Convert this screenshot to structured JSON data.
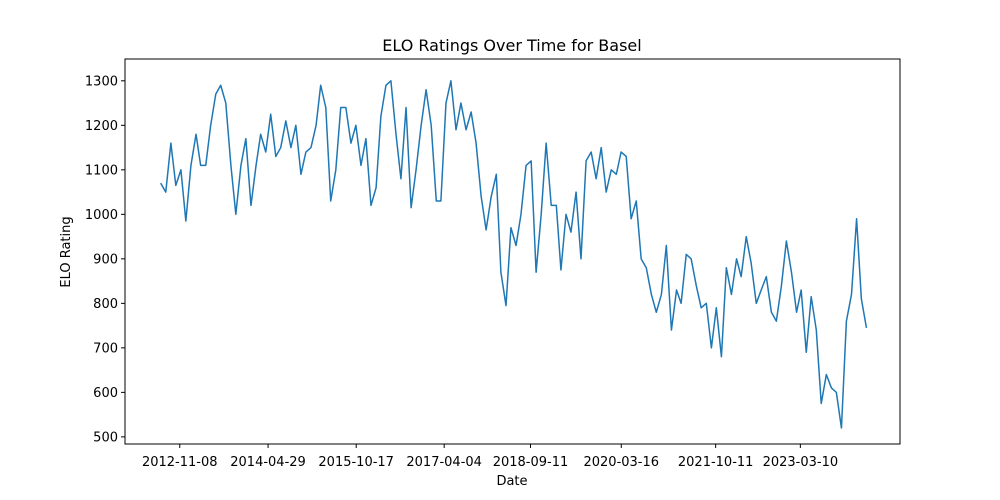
{
  "chart_data": {
    "type": "line",
    "title": "ELO Ratings Over Time for Basel",
    "x_label": "Date",
    "y_label": "ELO Rating",
    "x": [
      "2012-07-15",
      "2012-08-15",
      "2012-09-15",
      "2012-10-15",
      "2012-11-15",
      "2012-12-15",
      "2013-01-15",
      "2013-02-15",
      "2013-03-15",
      "2013-04-15",
      "2013-05-15",
      "2013-06-15",
      "2013-07-15",
      "2013-08-15",
      "2013-09-15",
      "2013-10-15",
      "2013-11-15",
      "2013-12-15",
      "2014-01-15",
      "2014-02-15",
      "2014-03-15",
      "2014-04-15",
      "2014-05-15",
      "2014-06-15",
      "2014-07-15",
      "2014-08-15",
      "2014-09-15",
      "2014-10-15",
      "2014-11-15",
      "2014-12-15",
      "2015-01-15",
      "2015-02-15",
      "2015-03-15",
      "2015-04-15",
      "2015-05-15",
      "2015-06-15",
      "2015-07-15",
      "2015-08-15",
      "2015-09-15",
      "2015-10-15",
      "2015-11-15",
      "2015-12-15",
      "2016-01-15",
      "2016-02-15",
      "2016-03-15",
      "2016-04-15",
      "2016-05-15",
      "2016-06-15",
      "2016-07-15",
      "2016-08-15",
      "2016-09-15",
      "2016-10-15",
      "2016-11-15",
      "2016-12-15",
      "2017-01-15",
      "2017-02-15",
      "2017-03-15",
      "2017-04-15",
      "2017-05-15",
      "2017-06-15",
      "2017-07-15",
      "2017-08-15",
      "2017-09-15",
      "2017-10-15",
      "2017-11-15",
      "2017-12-15",
      "2018-01-15",
      "2018-02-15",
      "2018-03-15",
      "2018-04-15",
      "2018-05-15",
      "2018-06-15",
      "2018-07-15",
      "2018-08-15",
      "2018-09-15",
      "2018-10-15",
      "2018-11-15",
      "2018-12-15",
      "2019-01-15",
      "2019-02-15",
      "2019-03-15",
      "2019-04-15",
      "2019-05-15",
      "2019-06-15",
      "2019-07-15",
      "2019-08-15",
      "2019-09-15",
      "2019-10-15",
      "2019-11-15",
      "2019-12-15",
      "2020-01-15",
      "2020-02-15",
      "2020-03-15",
      "2020-04-15",
      "2020-05-15",
      "2020-06-15",
      "2020-07-15",
      "2020-08-15",
      "2020-09-15",
      "2020-10-15",
      "2020-11-15",
      "2020-12-15",
      "2021-01-15",
      "2021-02-15",
      "2021-03-15",
      "2021-04-15",
      "2021-05-15",
      "2021-06-15",
      "2021-07-15",
      "2021-08-15",
      "2021-09-15",
      "2021-10-15",
      "2021-11-15",
      "2021-12-15",
      "2022-01-15",
      "2022-02-15",
      "2022-03-15",
      "2022-04-15",
      "2022-05-15",
      "2022-06-15",
      "2022-07-15",
      "2022-08-15",
      "2022-09-15",
      "2022-10-15",
      "2022-11-15",
      "2022-12-15",
      "2023-01-15",
      "2023-02-15",
      "2023-03-15",
      "2023-04-15",
      "2023-05-15",
      "2023-06-15",
      "2023-07-15",
      "2023-08-15",
      "2023-09-15",
      "2023-10-15",
      "2023-11-15",
      "2023-12-15",
      "2024-01-15",
      "2024-02-15",
      "2024-03-15",
      "2024-04-15"
    ],
    "series": [
      {
        "name": "Basel",
        "color": "#1f77b4",
        "values": [
          1070,
          1050,
          1160,
          1065,
          1100,
          985,
          1110,
          1180,
          1110,
          1110,
          1200,
          1270,
          1290,
          1250,
          1110,
          1000,
          1110,
          1170,
          1020,
          1110,
          1180,
          1140,
          1225,
          1130,
          1150,
          1210,
          1150,
          1200,
          1090,
          1140,
          1150,
          1200,
          1290,
          1240,
          1030,
          1100,
          1240,
          1240,
          1160,
          1200,
          1110,
          1170,
          1020,
          1060,
          1220,
          1290,
          1300,
          1180,
          1080,
          1240,
          1015,
          1100,
          1200,
          1280,
          1200,
          1030,
          1030,
          1250,
          1300,
          1190,
          1250,
          1190,
          1230,
          1160,
          1040,
          965,
          1040,
          1090,
          870,
          795,
          970,
          930,
          1000,
          1110,
          1120,
          870,
          1000,
          1160,
          1020,
          1020,
          875,
          1000,
          960,
          1050,
          900,
          1120,
          1140,
          1080,
          1150,
          1050,
          1100,
          1090,
          1140,
          1130,
          990,
          1030,
          900,
          880,
          820,
          780,
          820,
          930,
          740,
          830,
          800,
          910,
          900,
          840,
          790,
          800,
          700,
          790,
          680,
          880,
          820,
          900,
          860,
          950,
          890,
          800,
          830,
          860,
          780,
          760,
          840,
          940,
          870,
          780,
          830,
          690,
          815,
          740,
          575,
          640,
          610,
          600,
          520,
          760,
          820,
          990,
          810,
          745
        ]
      }
    ],
    "xlim": [
      "2011-12-11",
      "2024-11-05"
    ],
    "xticks": [
      "2012-11-08",
      "2014-04-29",
      "2015-10-17",
      "2017-04-04",
      "2018-09-11",
      "2020-03-16",
      "2021-10-11",
      "2023-03-10"
    ],
    "ylim": [
      484,
      1349
    ],
    "yticks": [
      500,
      600,
      700,
      800,
      900,
      1000,
      1100,
      1200,
      1300
    ],
    "grid": false
  }
}
